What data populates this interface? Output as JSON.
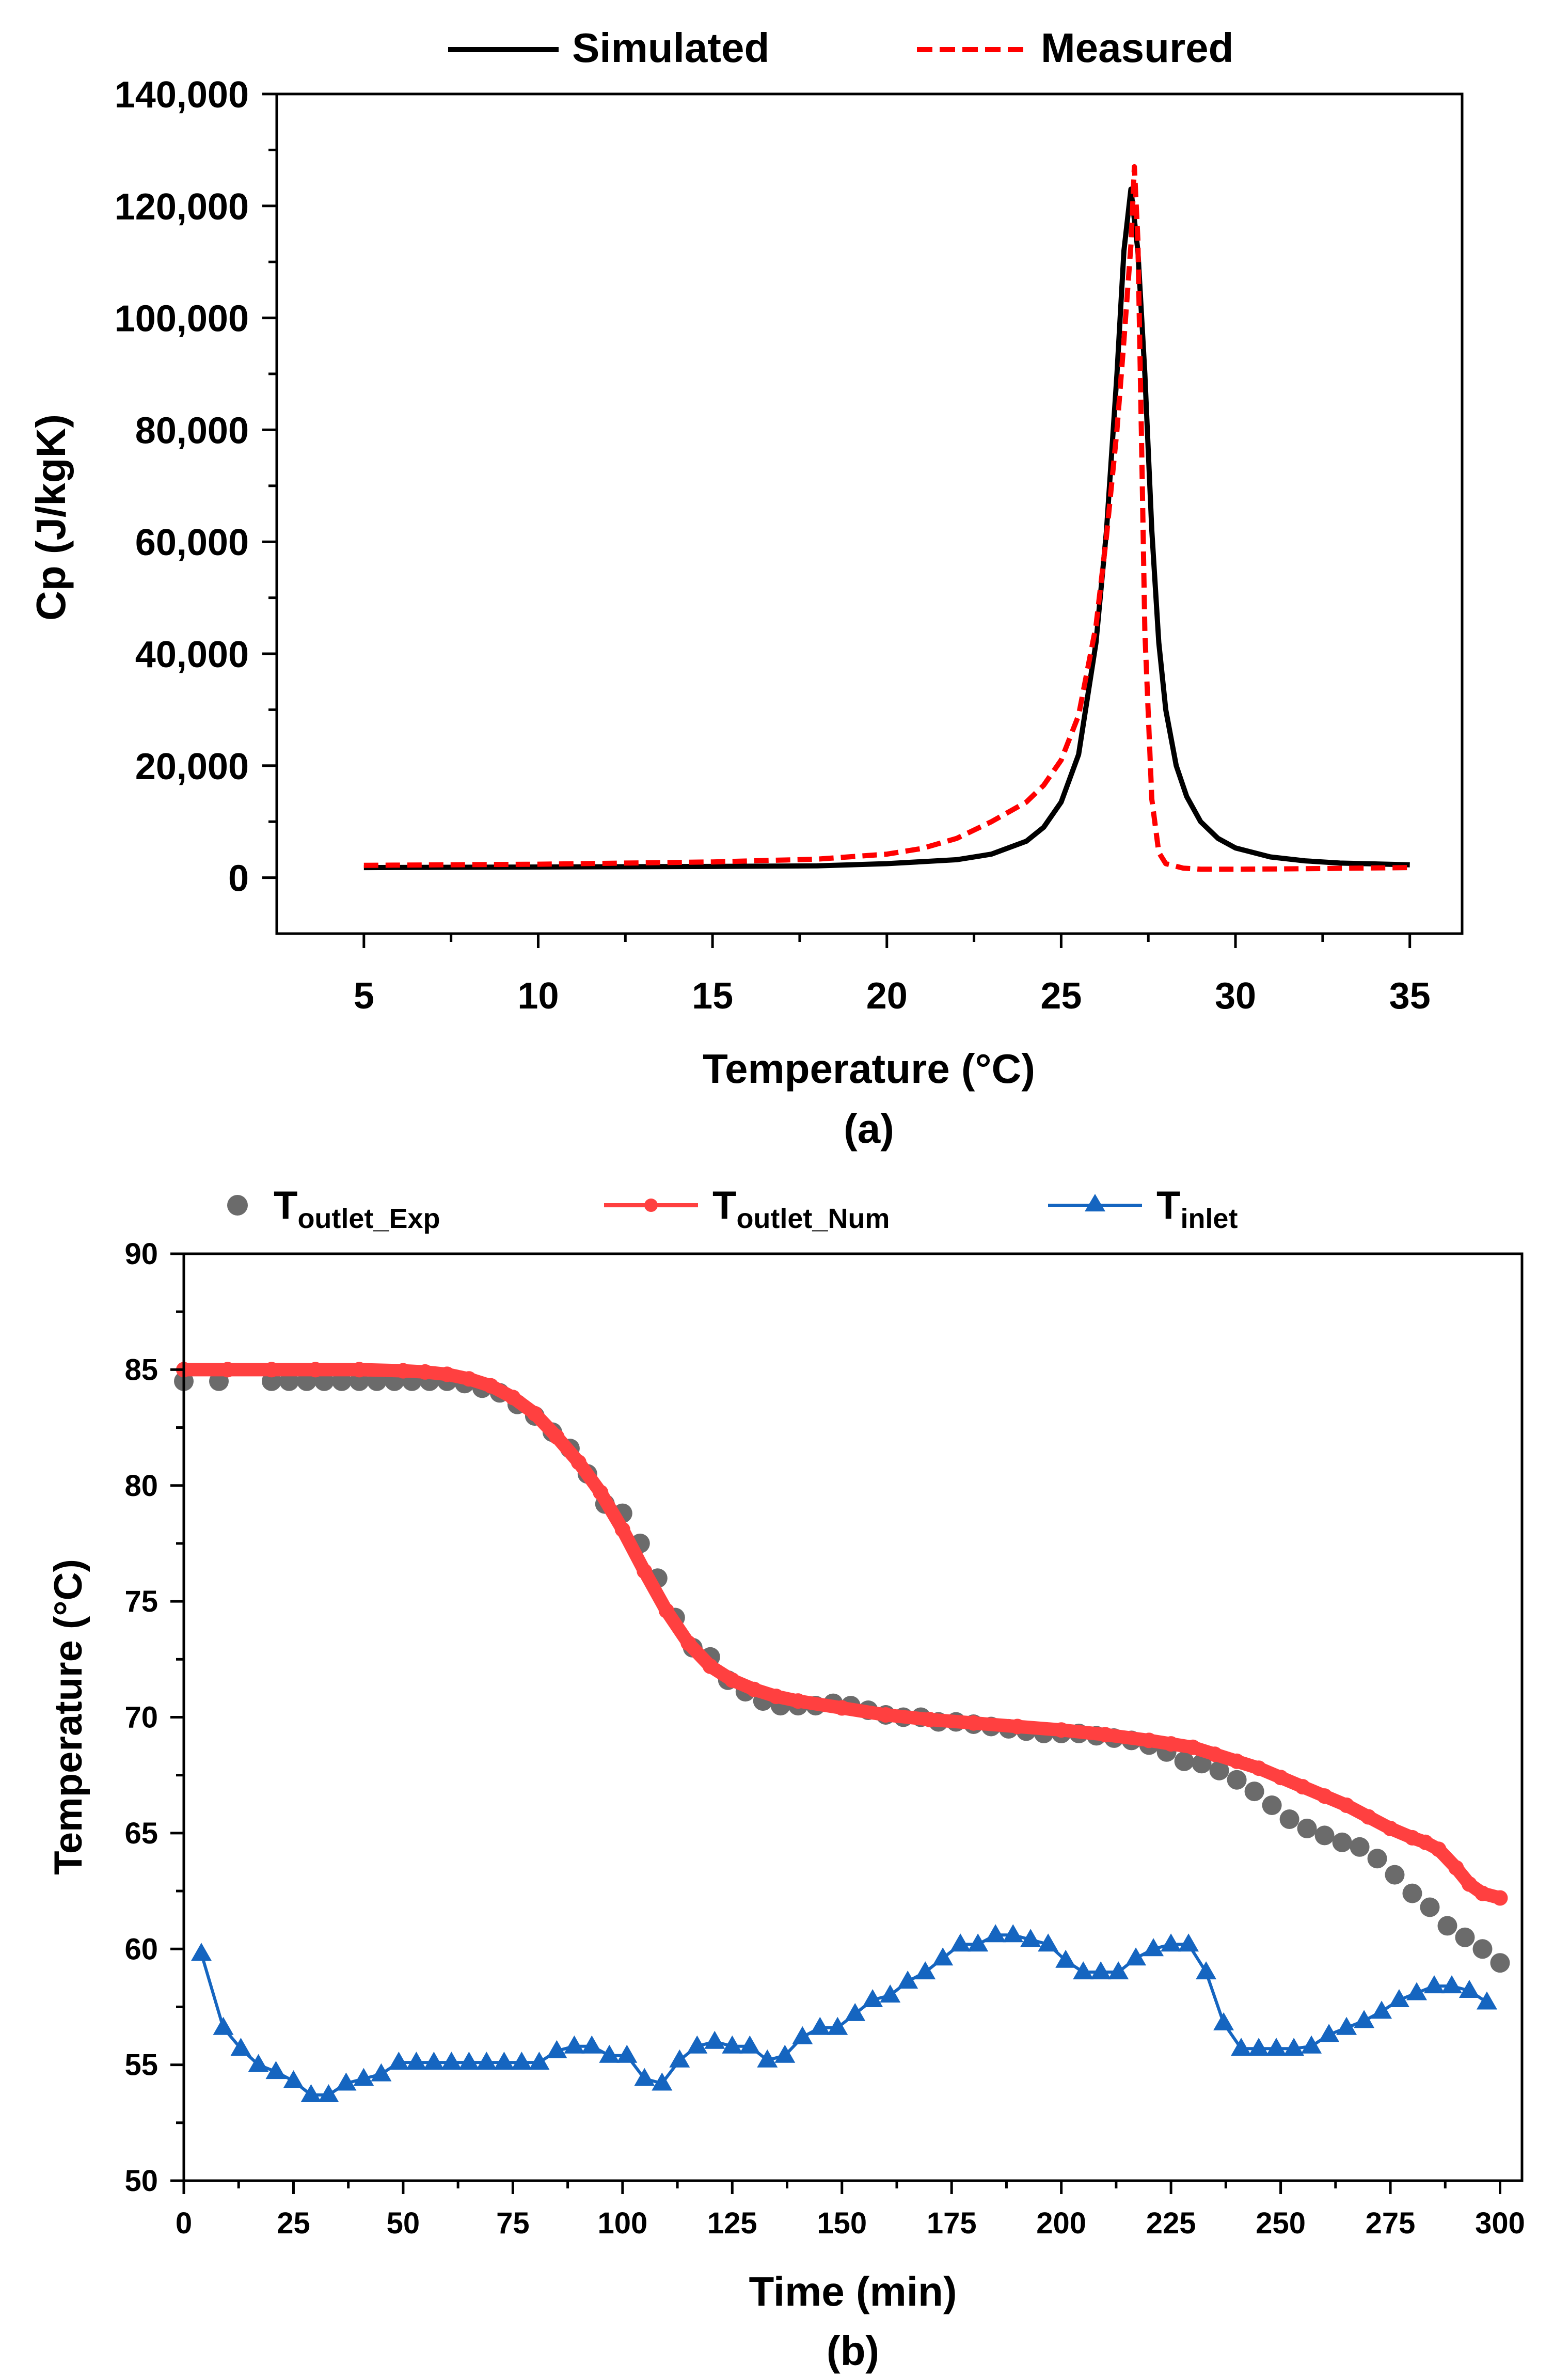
{
  "chart_data": [
    {
      "type": "line",
      "panel_label": "(a)",
      "title": "",
      "xlabel": "Temperature (°C)",
      "ylabel": "Cp (J/kgK)",
      "xlim": [
        2.5,
        36.5
      ],
      "ylim": [
        -10000,
        140000
      ],
      "xticks": [
        5,
        10,
        15,
        20,
        25,
        30,
        35
      ],
      "xtick_labels": [
        "5",
        "10",
        "15",
        "20",
        "25",
        "30",
        "35"
      ],
      "yticks": [
        0,
        20000,
        40000,
        60000,
        80000,
        100000,
        120000,
        140000
      ],
      "ytick_labels": [
        "0",
        "20,000",
        "40,000",
        "60,000",
        "80,000",
        "100,000",
        "120,000",
        "140,000"
      ],
      "grid": false,
      "legend_position": "top-center",
      "series": [
        {
          "name": "Simulated",
          "color": "#000000",
          "style": "solid",
          "x": [
            5,
            10,
            15,
            18,
            20,
            22,
            23,
            24,
            24.5,
            25,
            25.5,
            26,
            26.3,
            26.6,
            26.8,
            27,
            27.2,
            27.4,
            27.6,
            27.8,
            28,
            28.3,
            28.6,
            29,
            29.5,
            30,
            31,
            32,
            33,
            35
          ],
          "y": [
            1800,
            1900,
            2000,
            2100,
            2500,
            3200,
            4200,
            6500,
            9000,
            13500,
            22000,
            42000,
            62000,
            90000,
            112000,
            123000,
            112000,
            90000,
            62000,
            42000,
            30000,
            20000,
            14500,
            10000,
            7000,
            5300,
            3700,
            3000,
            2600,
            2300
          ]
        },
        {
          "name": "Measured",
          "color": "#ff0000",
          "style": "dashed",
          "x": [
            5,
            10,
            15,
            18,
            20,
            21,
            22,
            23,
            24,
            24.5,
            25,
            25.5,
            26,
            26.3,
            26.6,
            26.8,
            27,
            27.1,
            27.2,
            27.3,
            27.4,
            27.6,
            27.8,
            28,
            28.5,
            29,
            30,
            32,
            35
          ],
          "y": [
            2200,
            2400,
            2800,
            3300,
            4200,
            5200,
            7000,
            10000,
            13500,
            16500,
            21000,
            29000,
            45000,
            61000,
            80000,
            96000,
            113000,
            127000,
            114000,
            80000,
            44000,
            14000,
            4500,
            2500,
            1700,
            1500,
            1500,
            1600,
            1800
          ]
        }
      ]
    },
    {
      "type": "line",
      "panel_label": "(b)",
      "title": "",
      "xlabel": "Time (min)",
      "ylabel": "Temperature (°C)",
      "xlim": [
        0,
        305
      ],
      "ylim": [
        50,
        90
      ],
      "xticks": [
        0,
        25,
        50,
        75,
        100,
        125,
        150,
        175,
        200,
        225,
        250,
        275,
        300
      ],
      "xtick_labels": [
        "0",
        "25",
        "50",
        "75",
        "100",
        "125",
        "150",
        "175",
        "200",
        "225",
        "250",
        "275",
        "300"
      ],
      "yticks": [
        50,
        55,
        60,
        65,
        70,
        75,
        80,
        85,
        90
      ],
      "ytick_labels": [
        "50",
        "55",
        "60",
        "65",
        "70",
        "75",
        "80",
        "85",
        "90"
      ],
      "grid": false,
      "legend_position": "top",
      "series": [
        {
          "name": "T",
          "subscript": "outlet_Exp",
          "color": "#6b6b6b",
          "style": "markers",
          "marker": "circle",
          "x": [
            0,
            8,
            20,
            24,
            28,
            32,
            36,
            40,
            44,
            48,
            52,
            56,
            60,
            64,
            68,
            72,
            76,
            80,
            84,
            88,
            92,
            96,
            100,
            104,
            108,
            112,
            116,
            120,
            124,
            128,
            132,
            136,
            140,
            144,
            148,
            152,
            156,
            160,
            164,
            168,
            172,
            176,
            180,
            184,
            188,
            192,
            196,
            200,
            204,
            208,
            212,
            216,
            220,
            224,
            228,
            232,
            236,
            240,
            244,
            248,
            252,
            256,
            260,
            264,
            268,
            272,
            276,
            280,
            284,
            288,
            292,
            296,
            300
          ],
          "y": [
            84.5,
            84.5,
            84.5,
            84.5,
            84.5,
            84.5,
            84.5,
            84.5,
            84.5,
            84.5,
            84.5,
            84.5,
            84.5,
            84.4,
            84.2,
            84,
            83.5,
            83,
            82.3,
            81.6,
            80.5,
            79.2,
            78.8,
            77.5,
            76,
            74.3,
            73,
            72.6,
            71.6,
            71.1,
            70.7,
            70.5,
            70.5,
            70.5,
            70.6,
            70.5,
            70.3,
            70.1,
            70,
            70,
            69.8,
            69.8,
            69.7,
            69.6,
            69.5,
            69.4,
            69.3,
            69.3,
            69.3,
            69.2,
            69.1,
            69,
            68.8,
            68.5,
            68.1,
            68,
            67.7,
            67.3,
            66.8,
            66.2,
            65.6,
            65.2,
            64.9,
            64.6,
            64.4,
            63.9,
            63.2,
            62.4,
            61.8,
            61,
            60.5,
            60,
            59.4
          ]
        },
        {
          "name": "T",
          "subscript": "outlet_Num",
          "color": "#ff4040",
          "style": "line-dense-markers",
          "marker": "circle",
          "x": [
            0,
            10,
            20,
            30,
            40,
            50,
            55,
            60,
            65,
            70,
            75,
            80,
            85,
            90,
            95,
            100,
            105,
            110,
            115,
            120,
            125,
            130,
            135,
            140,
            150,
            160,
            170,
            180,
            190,
            200,
            210,
            220,
            225,
            230,
            235,
            240,
            245,
            250,
            255,
            260,
            265,
            270,
            275,
            280,
            283,
            286,
            290,
            293,
            296,
            300
          ],
          "y": [
            85,
            85,
            85,
            85,
            85,
            84.95,
            84.9,
            84.8,
            84.6,
            84.3,
            83.8,
            83.1,
            82.1,
            81,
            79.7,
            78.1,
            76.3,
            74.6,
            73.2,
            72.2,
            71.6,
            71.2,
            70.9,
            70.7,
            70.4,
            70.1,
            69.9,
            69.75,
            69.6,
            69.45,
            69.25,
            69,
            68.85,
            68.7,
            68.4,
            68.1,
            67.8,
            67.4,
            67,
            66.6,
            66.2,
            65.7,
            65.2,
            64.8,
            64.6,
            64.3,
            63.5,
            62.8,
            62.4,
            62.2
          ]
        },
        {
          "name": "T",
          "subscript": "inlet",
          "color": "#1565c0",
          "style": "line-markers",
          "marker": "triangle",
          "x": [
            4,
            9,
            13,
            17,
            21,
            25,
            29,
            33,
            37,
            41,
            45,
            49,
            53,
            57,
            61,
            65,
            69,
            73,
            77,
            81,
            85,
            89,
            93,
            97,
            101,
            105,
            109,
            113,
            117,
            121,
            125,
            129,
            133,
            137,
            141,
            145,
            149,
            153,
            157,
            161,
            165,
            169,
            173,
            177,
            181,
            185,
            189,
            193,
            197,
            201,
            205,
            209,
            213,
            217,
            221,
            225,
            229,
            233,
            237,
            241,
            245,
            249,
            253,
            257,
            261,
            265,
            269,
            273,
            277,
            281,
            285,
            289,
            293,
            297
          ],
          "y": [
            59.8,
            56.6,
            55.7,
            55,
            54.7,
            54.3,
            53.7,
            53.7,
            54.2,
            54.4,
            54.6,
            55.1,
            55.1,
            55.1,
            55.1,
            55.1,
            55.1,
            55.1,
            55.1,
            55.1,
            55.6,
            55.8,
            55.8,
            55.4,
            55.4,
            54.4,
            54.2,
            55.2,
            55.8,
            56,
            55.8,
            55.8,
            55.2,
            55.4,
            56.2,
            56.6,
            56.6,
            57.2,
            57.8,
            58,
            58.6,
            59,
            59.6,
            60.2,
            60.2,
            60.6,
            60.6,
            60.4,
            60.2,
            59.5,
            59,
            59,
            59,
            59.6,
            60,
            60.2,
            60.2,
            59,
            56.8,
            55.7,
            55.7,
            55.7,
            55.7,
            55.8,
            56.3,
            56.6,
            56.9,
            57.3,
            57.8,
            58.1,
            58.4,
            58.4,
            58.2,
            57.7
          ]
        }
      ]
    }
  ]
}
